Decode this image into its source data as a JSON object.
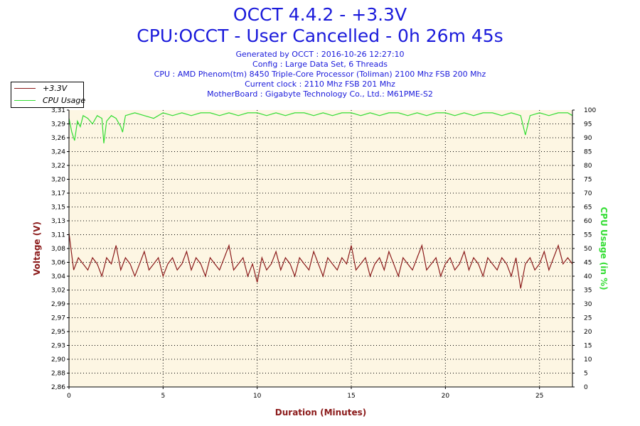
{
  "header": {
    "title": "OCCT 4.4.2 - +3.3V",
    "subtitle": "CPU:OCCT - User Cancelled - 0h 26m 45s",
    "info": [
      "Generated by OCCT : 2016-10-26 12:27:10",
      "Config : Large Data Set, 6 Threads",
      "CPU : AMD Phenom(tm) 8450 Triple-Core Processor (Toliman) 2100 Mhz FSB 200 Mhz",
      "Current clock : 2110 Mhz FSB 201 Mhz",
      "MotherBoard : Gigabyte Technology Co., Ltd.: M61PME-S2"
    ]
  },
  "legend": {
    "placement": "top-left",
    "items": [
      {
        "label": "+3.3V",
        "color": "#8b1a1a"
      },
      {
        "label": "CPU Usage",
        "color": "#33dd33"
      }
    ]
  },
  "chart_data": {
    "type": "line",
    "grid": true,
    "background_color": "#fdf6e3",
    "xlabel": "Duration (Minutes)",
    "ylabel": "Voltage (V)",
    "y2label": "CPU Usage (in %)",
    "xlim": [
      0,
      26.75
    ],
    "ylim": [
      2.86,
      3.31
    ],
    "y2lim": [
      0,
      100
    ],
    "x_ticks": [
      "0",
      "5",
      "10",
      "15",
      "20",
      "25"
    ],
    "y_ticks": [
      "2,86",
      "2,88",
      "2,90",
      "2,93",
      "2,95",
      "2,97",
      "2,99",
      "3,02",
      "3,04",
      "3,06",
      "3,08",
      "3,11",
      "3,13",
      "3,15",
      "3,17",
      "3,20",
      "3,22",
      "3,24",
      "3,26",
      "3,29",
      "3,31"
    ],
    "y2_ticks": [
      "0",
      "5",
      "10",
      "15",
      "20",
      "25",
      "30",
      "35",
      "40",
      "45",
      "50",
      "55",
      "60",
      "65",
      "70",
      "75",
      "80",
      "85",
      "90",
      "95",
      "100"
    ],
    "series": [
      {
        "name": "+3.3V",
        "axis": "left",
        "color": "#8b1a1a",
        "x": [
          0,
          0.25,
          0.5,
          0.75,
          1,
          1.25,
          1.5,
          1.75,
          2,
          2.25,
          2.5,
          2.75,
          3,
          3.25,
          3.5,
          3.75,
          4,
          4.25,
          4.5,
          4.75,
          5,
          5.25,
          5.5,
          5.75,
          6,
          6.25,
          6.5,
          6.75,
          7,
          7.25,
          7.5,
          7.75,
          8,
          8.25,
          8.5,
          8.75,
          9,
          9.25,
          9.5,
          9.75,
          10,
          10.25,
          10.5,
          10.75,
          11,
          11.25,
          11.5,
          11.75,
          12,
          12.25,
          12.5,
          12.75,
          13,
          13.25,
          13.5,
          13.75,
          14,
          14.25,
          14.5,
          14.75,
          15,
          15.25,
          15.5,
          15.75,
          16,
          16.25,
          16.5,
          16.75,
          17,
          17.25,
          17.5,
          17.75,
          18,
          18.25,
          18.5,
          18.75,
          19,
          19.25,
          19.5,
          19.75,
          20,
          20.25,
          20.5,
          20.75,
          21,
          21.25,
          21.5,
          21.75,
          22,
          22.25,
          22.5,
          22.75,
          23,
          23.25,
          23.5,
          23.75,
          24,
          24.25,
          24.5,
          24.75,
          25,
          25.25,
          25.5,
          25.75,
          26,
          26.25,
          26.5,
          26.75
        ],
        "values": [
          3.11,
          3.05,
          3.07,
          3.06,
          3.05,
          3.07,
          3.06,
          3.04,
          3.07,
          3.06,
          3.09,
          3.05,
          3.07,
          3.06,
          3.04,
          3.06,
          3.08,
          3.05,
          3.06,
          3.07,
          3.04,
          3.06,
          3.07,
          3.05,
          3.06,
          3.08,
          3.05,
          3.07,
          3.06,
          3.04,
          3.07,
          3.06,
          3.05,
          3.07,
          3.09,
          3.05,
          3.06,
          3.07,
          3.04,
          3.06,
          3.03,
          3.07,
          3.05,
          3.06,
          3.08,
          3.05,
          3.07,
          3.06,
          3.04,
          3.07,
          3.06,
          3.05,
          3.08,
          3.06,
          3.04,
          3.07,
          3.06,
          3.05,
          3.07,
          3.06,
          3.09,
          3.05,
          3.06,
          3.07,
          3.04,
          3.06,
          3.07,
          3.05,
          3.08,
          3.06,
          3.04,
          3.07,
          3.06,
          3.05,
          3.07,
          3.09,
          3.05,
          3.06,
          3.07,
          3.04,
          3.06,
          3.07,
          3.05,
          3.06,
          3.08,
          3.05,
          3.07,
          3.06,
          3.04,
          3.07,
          3.06,
          3.05,
          3.07,
          3.06,
          3.04,
          3.07,
          3.02,
          3.06,
          3.07,
          3.05,
          3.06,
          3.08,
          3.05,
          3.07,
          3.09,
          3.06,
          3.07,
          3.06
        ]
      },
      {
        "name": "CPU Usage",
        "axis": "right",
        "color": "#33dd33",
        "x": [
          0,
          0.15,
          0.3,
          0.45,
          0.6,
          0.75,
          1,
          1.25,
          1.5,
          1.75,
          1.85,
          2,
          2.25,
          2.5,
          2.75,
          2.85,
          3,
          3.5,
          4,
          4.5,
          5,
          5.5,
          6,
          6.5,
          7,
          7.5,
          8,
          8.5,
          9,
          9.5,
          10,
          10.5,
          11,
          11.5,
          12,
          12.5,
          13,
          13.5,
          14,
          14.5,
          15,
          15.5,
          16,
          16.5,
          17,
          17.5,
          18,
          18.5,
          19,
          19.5,
          20,
          20.5,
          21,
          21.5,
          22,
          22.5,
          23,
          23.5,
          24,
          24.25,
          24.5,
          25,
          25.5,
          26,
          26.5,
          26.75
        ],
        "values": [
          97,
          92,
          89,
          96,
          94,
          98,
          97,
          95,
          98,
          97,
          88,
          96,
          98,
          97,
          94,
          92,
          98,
          99,
          98,
          97,
          99,
          98,
          99,
          98,
          99,
          99,
          98,
          99,
          98,
          99,
          99,
          98,
          99,
          98,
          99,
          99,
          98,
          99,
          98,
          99,
          99,
          98,
          99,
          98,
          99,
          99,
          98,
          99,
          98,
          99,
          99,
          98,
          99,
          98,
          99,
          99,
          98,
          99,
          98,
          91,
          98,
          99,
          98,
          99,
          99,
          98
        ]
      }
    ]
  }
}
